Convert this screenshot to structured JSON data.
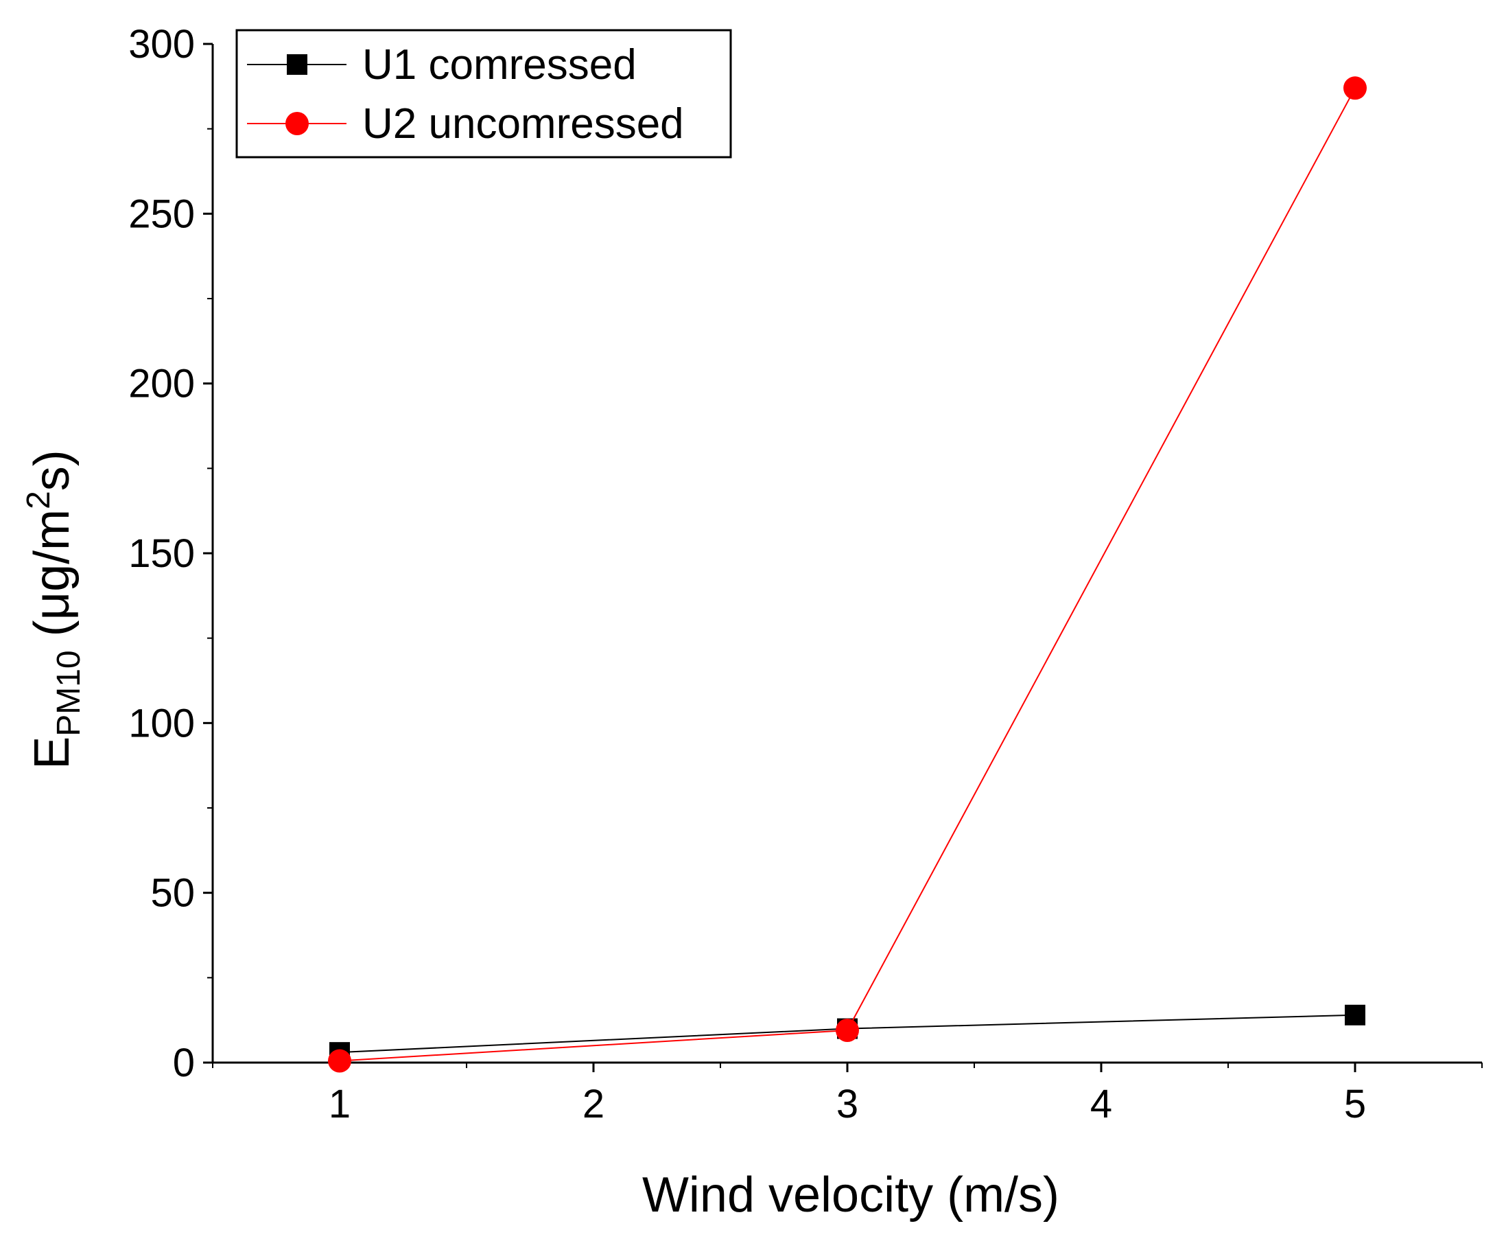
{
  "chart_data": {
    "type": "line",
    "x": [
      1,
      3,
      5
    ],
    "series": [
      {
        "name": "U1 comressed",
        "values": [
          3,
          10,
          14
        ],
        "color": "#000000",
        "marker": "square"
      },
      {
        "name": "U2 uncomressed",
        "values": [
          0.5,
          9.5,
          287
        ],
        "color": "#ff0000",
        "marker": "circle"
      }
    ],
    "xlabel": "Wind velocity (m/s)",
    "ylabel": {
      "main": "E",
      "sub": "PM10",
      "unit_pre": " (μg/m",
      "sup": "2",
      "unit_post": "s)"
    },
    "xlim": [
      0.5,
      5.5
    ],
    "ylim": [
      0,
      300
    ],
    "x_ticks": [
      "1",
      "2",
      "3",
      "4",
      "5"
    ],
    "y_ticks": [
      "0",
      "50",
      "100",
      "150",
      "200",
      "250",
      "300"
    ],
    "grid": false,
    "legend_position": "top-left"
  }
}
